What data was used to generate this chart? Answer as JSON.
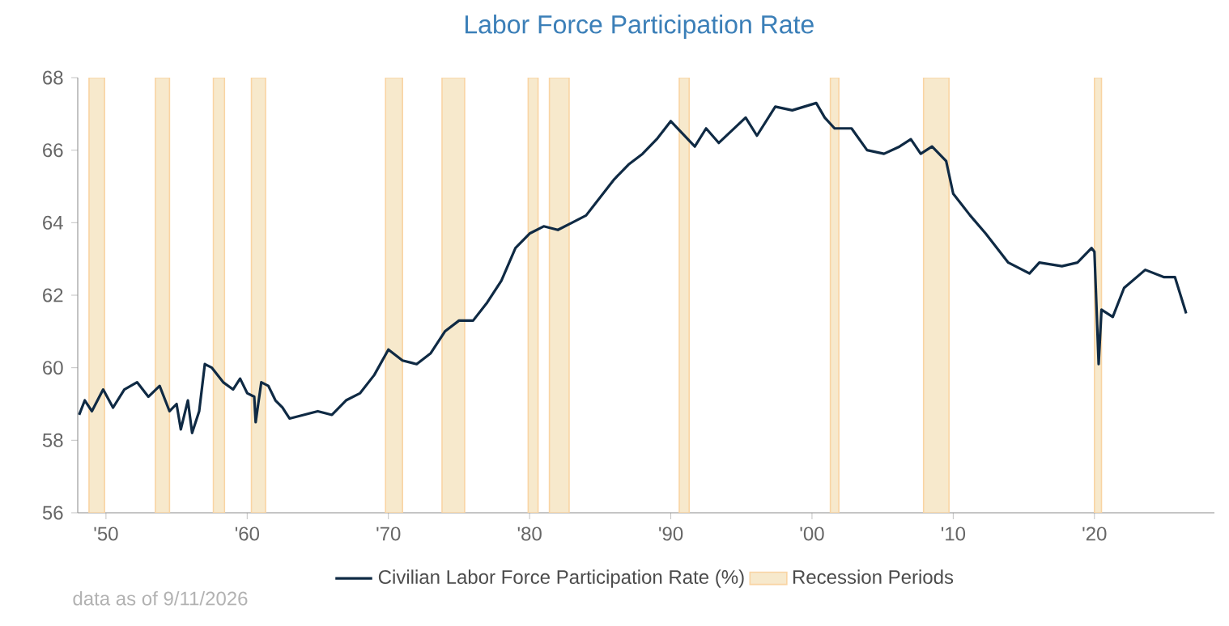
{
  "chart_data": {
    "type": "line",
    "title": "Labor Force Participation Rate",
    "xlim": [
      1948,
      2028.5
    ],
    "ylim": [
      56,
      68
    ],
    "xticks": [
      {
        "value": 1950,
        "label": "'50"
      },
      {
        "value": 1960,
        "label": "'60"
      },
      {
        "value": 1970,
        "label": "'70"
      },
      {
        "value": 1980,
        "label": "'80"
      },
      {
        "value": 1990,
        "label": "'90"
      },
      {
        "value": 2000,
        "label": "'00"
      },
      {
        "value": 2010,
        "label": "'10"
      },
      {
        "value": 2020,
        "label": "'20"
      }
    ],
    "yticks": [
      56,
      58,
      60,
      62,
      64,
      66,
      68
    ],
    "legend": "bottom",
    "series": [
      {
        "name": "Civilian Labor Force Participation Rate (%)",
        "color": "#0f2a44",
        "x": [
          1948.1,
          1948.5,
          1949.0,
          1949.8,
          1950.5,
          1951.3,
          1952.2,
          1953.0,
          1953.8,
          1954.5,
          1955.0,
          1955.3,
          1955.8,
          1956.1,
          1956.6,
          1957.0,
          1957.5,
          1958.3,
          1959.0,
          1959.5,
          1960.0,
          1960.5,
          1960.6,
          1961.0,
          1961.5,
          1962.0,
          1962.5,
          1963.0,
          1964.0,
          1965.0,
          1966.0,
          1967.0,
          1968.0,
          1969.0,
          1970.0,
          1971.0,
          1972.0,
          1973.0,
          1974.0,
          1975.0,
          1976.0,
          1977.0,
          1978.0,
          1979.0,
          1980.0,
          1981.0,
          1982.0,
          1983.0,
          1984.0,
          1985.0,
          1986.0,
          1987.0,
          1988.0,
          1989.0,
          1990.0,
          1991.7,
          1992.5,
          1993.4,
          1995.3,
          1996.1,
          1997.4,
          1998.6,
          2000.3,
          2000.9,
          2001.6,
          2002.8,
          2003.9,
          2005.1,
          2006.2,
          2007.0,
          2007.7,
          2008.5,
          2009.5,
          2010.0,
          2011.2,
          2012.3,
          2013.9,
          2015.4,
          2016.1,
          2017.7,
          2018.8,
          2019.8,
          2020.0,
          2020.3,
          2020.5,
          2021.3,
          2022.1,
          2023.6,
          2024.9,
          2025.7,
          2026.5
        ],
        "values": [
          58.7,
          59.1,
          58.8,
          59.4,
          58.9,
          59.4,
          59.6,
          59.2,
          59.5,
          58.8,
          59.0,
          58.3,
          59.1,
          58.2,
          58.8,
          60.1,
          60.0,
          59.6,
          59.4,
          59.7,
          59.3,
          59.2,
          58.5,
          59.6,
          59.5,
          59.1,
          58.9,
          58.6,
          58.7,
          58.8,
          58.7,
          59.1,
          59.3,
          59.8,
          60.5,
          60.2,
          60.1,
          60.4,
          61.0,
          61.3,
          61.3,
          61.8,
          62.4,
          63.3,
          63.7,
          63.9,
          63.8,
          64.0,
          64.2,
          64.7,
          65.2,
          65.6,
          65.9,
          66.3,
          66.8,
          66.1,
          66.6,
          66.2,
          66.9,
          66.4,
          67.2,
          67.1,
          67.3,
          66.9,
          66.6,
          66.6,
          66.0,
          65.9,
          66.1,
          66.3,
          65.9,
          66.1,
          65.7,
          64.8,
          64.2,
          63.7,
          62.9,
          62.6,
          62.9,
          62.8,
          62.9,
          63.3,
          63.2,
          60.1,
          61.6,
          61.4,
          62.2,
          62.7,
          62.5,
          62.5,
          61.5
        ]
      }
    ],
    "bands": [
      {
        "axis": "x",
        "from": 1948.8,
        "to": 1949.9,
        "label": "Recession Periods",
        "color": "#f7e9cc"
      },
      {
        "axis": "x",
        "from": 1953.5,
        "to": 1954.5,
        "color": "#f7e9cc"
      },
      {
        "axis": "x",
        "from": 1957.6,
        "to": 1958.4,
        "color": "#f7e9cc"
      },
      {
        "axis": "x",
        "from": 1960.3,
        "to": 1961.3,
        "color": "#f7e9cc"
      },
      {
        "axis": "x",
        "from": 1969.8,
        "to": 1971.0,
        "color": "#f7e9cc"
      },
      {
        "axis": "x",
        "from": 1973.8,
        "to": 1975.4,
        "color": "#f7e9cc"
      },
      {
        "axis": "x",
        "from": 1979.9,
        "to": 1980.6,
        "color": "#f7e9cc"
      },
      {
        "axis": "x",
        "from": 1981.4,
        "to": 1982.8,
        "color": "#f7e9cc"
      },
      {
        "axis": "x",
        "from": 1990.6,
        "to": 1991.3,
        "color": "#f7e9cc"
      },
      {
        "axis": "x",
        "from": 2001.3,
        "to": 2001.9,
        "color": "#f7e9cc"
      },
      {
        "axis": "x",
        "from": 2007.9,
        "to": 2009.7,
        "color": "#f7e9cc"
      },
      {
        "axis": "x",
        "from": 2020.0,
        "to": 2020.5,
        "color": "#f7e9cc"
      }
    ],
    "annotations": [
      "data as of 9/11/2026"
    ]
  }
}
